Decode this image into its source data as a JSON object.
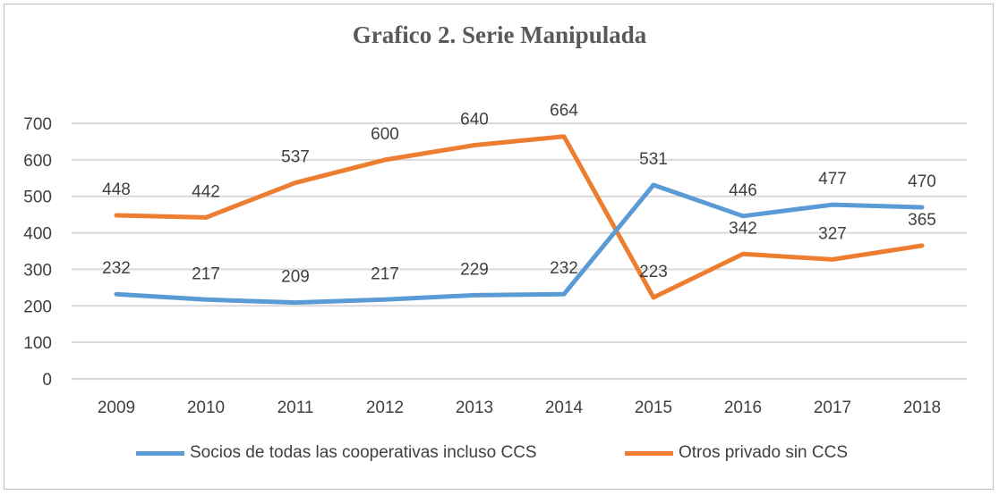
{
  "chart_data": {
    "type": "line",
    "title": "Grafico 2. Serie Manipulada",
    "categories": [
      "2009",
      "2010",
      "2011",
      "2012",
      "2013",
      "2014",
      "2015",
      "2016",
      "2017",
      "2018"
    ],
    "ylim": [
      0,
      700
    ],
    "yticks": [
      "0",
      "100",
      "200",
      "300",
      "400",
      "500",
      "600",
      "700"
    ],
    "grid": true,
    "legend_position": "bottom",
    "series": [
      {
        "name": "Socios de todas las cooperativas incluso CCS",
        "color": "#5b9bd5",
        "values": [
          232,
          217,
          209,
          217,
          229,
          232,
          531,
          446,
          477,
          470
        ]
      },
      {
        "name": "Otros privado sin CCS",
        "color": "#ed7d31",
        "values": [
          448,
          442,
          537,
          600,
          640,
          664,
          223,
          342,
          327,
          365
        ]
      }
    ]
  }
}
